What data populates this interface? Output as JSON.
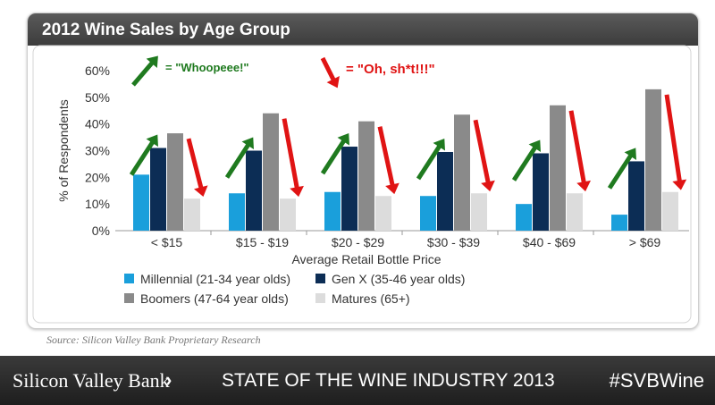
{
  "slide": {
    "title": "2012 Wine Sales by Age Group",
    "source": "Source: Silicon Valley Bank Proprietary Research",
    "footer_bank": "Silicon Valley Bank",
    "footer_chevron": "›",
    "footer_title": "STATE OF THE WINE INDUSTRY 2013",
    "footer_hashtag": "#SVBWine"
  },
  "annotations": {
    "up_label": "= \"Whoopeee!\"",
    "up_color": "#1f7a1f",
    "down_label": "= \"Oh, sh*t!!!\"",
    "down_color": "#e01414"
  },
  "chart_data": {
    "type": "bar",
    "title": "2012 Wine Sales by Age Group",
    "xlabel": "Average Retail Bottle Price",
    "ylabel": "% of Respondents",
    "ylim": [
      0,
      60
    ],
    "yticks": [
      "0%",
      "10%",
      "20%",
      "30%",
      "40%",
      "50%",
      "60%"
    ],
    "categories": [
      "< $15",
      "$15 - $19",
      "$20 - $29",
      "$30 - $39",
      "$40 - $69",
      "> $69"
    ],
    "series": [
      {
        "name": "Millennial (21-34 year olds)",
        "color": "#1a9fdb",
        "values": [
          21,
          14,
          14.5,
          13,
          10,
          6
        ]
      },
      {
        "name": "Gen X (35-46 year olds)",
        "color": "#0c2d55",
        "values": [
          31,
          30,
          31.5,
          29.5,
          29,
          26
        ]
      },
      {
        "name": "Boomers (47-64 year olds)",
        "color": "#8a8a8a",
        "values": [
          36.5,
          44,
          41,
          43.5,
          47,
          53
        ]
      },
      {
        "name": "Matures (65+)",
        "color": "#dcdcdc",
        "values": [
          12,
          12,
          13,
          14,
          14,
          14.5
        ]
      }
    ],
    "grid": false,
    "legend_position": "bottom"
  }
}
